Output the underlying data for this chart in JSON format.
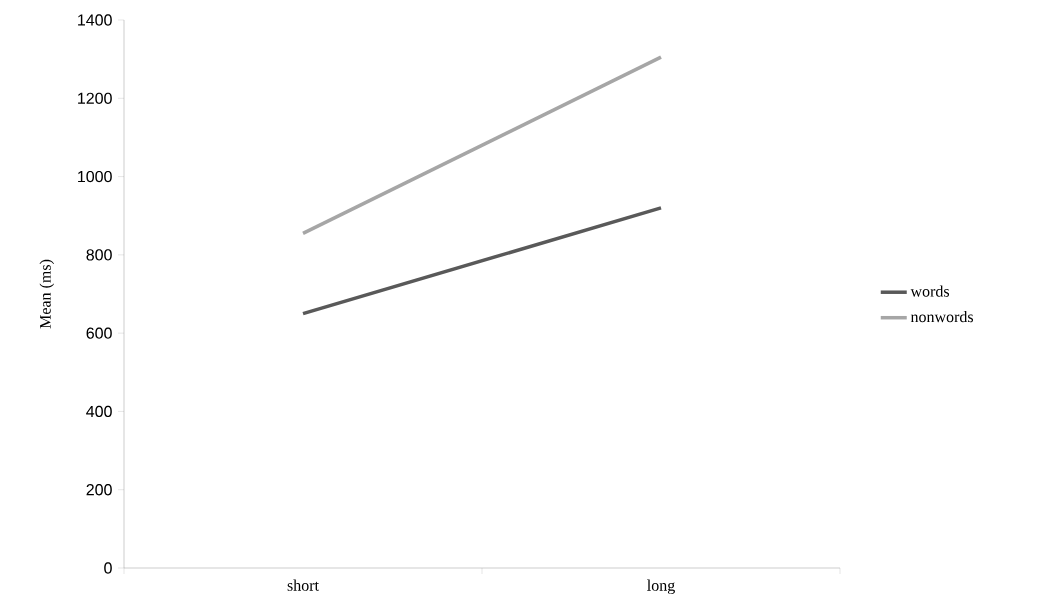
{
  "chart_data": {
    "type": "line",
    "ylabel": "Mean (ms)",
    "categories": [
      "short",
      "long"
    ],
    "series": [
      {
        "name": "words",
        "color": "#595959",
        "values": [
          650,
          920
        ]
      },
      {
        "name": "nonwords",
        "color": "#a6a6a6",
        "values": [
          855,
          1305
        ]
      }
    ],
    "ylim": [
      0,
      1400
    ],
    "yticks": [
      0,
      200,
      400,
      600,
      800,
      1000,
      1200,
      1400
    ],
    "grid": false,
    "legend": "right",
    "marker": "none",
    "line_style": "solid"
  }
}
